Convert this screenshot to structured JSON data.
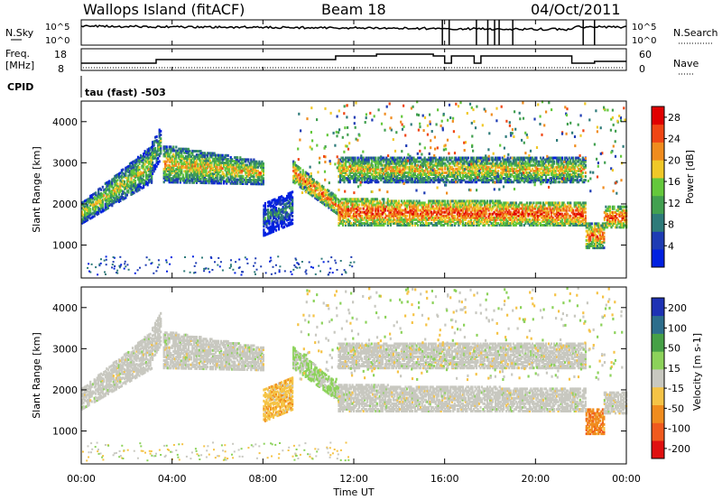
{
  "header": {
    "site": "Wallops Island (fitACF)",
    "beam": "Beam 18",
    "date": "04/Oct/2011"
  },
  "status_panels": {
    "nsky_label": "N.Sky",
    "nsky_ticks": [
      "10^5",
      "10^0"
    ],
    "nsearch_label": "N.Search",
    "nsearch_ticks": [
      "10^5",
      "10^0"
    ],
    "freq_label_1": "Freq.",
    "freq_label_2": "[MHz]",
    "freq_ticks": [
      "18",
      "8"
    ],
    "nave_label": "Nave",
    "nave_ticks": [
      "60",
      "0"
    ],
    "cpid_label": "CPID",
    "cpid_value": "tau (fast) -503"
  },
  "colors": {
    "power_scale": [
      "#0020e0",
      "#1e3cb4",
      "#2e7b7a",
      "#42a050",
      "#64c83c",
      "#f0c828",
      "#f08c1e",
      "#f04614",
      "#e00000"
    ],
    "velocity_scale": [
      "#e01010",
      "#f05a1e",
      "#f08c1e",
      "#f5c346",
      "#c8c8c0",
      "#8cd25a",
      "#46a046",
      "#2d6e8c",
      "#1e32b4"
    ],
    "ground_scatter": "#c8c8c0"
  },
  "chart_data": [
    {
      "type": "heatmap",
      "name": "power",
      "ylabel": "Slant Range [km]",
      "yticks": [
        "1000",
        "2000",
        "3000",
        "4000"
      ],
      "ylim": [
        200,
        4500
      ],
      "xlim": [
        0,
        24
      ],
      "colorbar_label": "Power [dB]",
      "colorbar_ticks": [
        "4",
        "8",
        "12",
        "16",
        "20",
        "24",
        "28"
      ],
      "colorbar_range": [
        0,
        30
      ],
      "scatter_regions": [
        {
          "t0": 0.0,
          "t1": 3.1,
          "r0_start": 1500,
          "r0_end": 2500,
          "r1_start": 2000,
          "r1_end": 3400,
          "power": 18
        },
        {
          "t0": 3.1,
          "t1": 3.5,
          "r0_start": 2700,
          "r0_end": 3100,
          "r1_start": 3500,
          "r1_end": 3900,
          "power": 14
        },
        {
          "t0": 3.6,
          "t1": 8.0,
          "r0_start": 2500,
          "r0_end": 2450,
          "r1_start": 3400,
          "r1_end": 3000,
          "power": 20
        },
        {
          "t0": 8.0,
          "t1": 9.3,
          "r0_start": 1200,
          "r0_end": 1500,
          "r1_start": 2000,
          "r1_end": 2300,
          "power": 10
        },
        {
          "t0": 9.3,
          "t1": 11.3,
          "r0_start": 2500,
          "r0_end": 1700,
          "r1_start": 3000,
          "r1_end": 2100,
          "power": 24
        },
        {
          "t0": 11.3,
          "t1": 22.2,
          "r0_start": 1450,
          "r0_end": 1450,
          "r1_start": 2100,
          "r1_end": 2000,
          "power": 26
        },
        {
          "t0": 11.3,
          "t1": 22.2,
          "r0_start": 2500,
          "r0_end": 2500,
          "r1_start": 3100,
          "r1_end": 3100,
          "power": 20
        },
        {
          "t0": 22.2,
          "t1": 23.0,
          "r0_start": 900,
          "r0_end": 900,
          "r1_start": 1500,
          "r1_end": 1500,
          "power": 24
        },
        {
          "t0": 23.0,
          "t1": 24.0,
          "r0_start": 1400,
          "r0_end": 1400,
          "r1_start": 1900,
          "r1_end": 1900,
          "power": 26
        }
      ]
    },
    {
      "type": "heatmap",
      "name": "velocity",
      "ylabel": "Slant Range [km]",
      "yticks": [
        "1000",
        "2000",
        "3000",
        "4000"
      ],
      "ylim": [
        200,
        4500
      ],
      "xlim": [
        0,
        24
      ],
      "xlabel": "Time UT",
      "xticks": [
        "00:00",
        "04:00",
        "08:00",
        "12:00",
        "16:00",
        "20:00",
        "00:00"
      ],
      "colorbar_label": "Velocity [m s-1]",
      "colorbar_ticks": [
        "-200",
        "-100",
        "-50",
        "-15",
        "15",
        "50",
        "100",
        "200"
      ],
      "colorbar_range": [
        -250,
        250
      ],
      "scatter_regions": [
        {
          "t0": 0.0,
          "t1": 3.1,
          "r0_start": 1500,
          "r0_end": 2500,
          "r1_start": 2000,
          "r1_end": 3400,
          "velocity": 0
        },
        {
          "t0": 3.1,
          "t1": 3.5,
          "r0_start": 2700,
          "r0_end": 3100,
          "r1_start": 3500,
          "r1_end": 3900,
          "velocity": 0
        },
        {
          "t0": 3.6,
          "t1": 8.0,
          "r0_start": 2500,
          "r0_end": 2450,
          "r1_start": 3400,
          "r1_end": 3000,
          "velocity": 0
        },
        {
          "t0": 8.0,
          "t1": 9.3,
          "r0_start": 1200,
          "r0_end": 1500,
          "r1_start": 2000,
          "r1_end": 2300,
          "velocity": -60
        },
        {
          "t0": 9.3,
          "t1": 11.3,
          "r0_start": 2500,
          "r0_end": 1700,
          "r1_start": 3000,
          "r1_end": 2100,
          "velocity": 40
        },
        {
          "t0": 11.3,
          "t1": 22.2,
          "r0_start": 1450,
          "r0_end": 1450,
          "r1_start": 2100,
          "r1_end": 2000,
          "velocity": 0
        },
        {
          "t0": 11.3,
          "t1": 22.2,
          "r0_start": 2500,
          "r0_end": 2500,
          "r1_start": 3100,
          "r1_end": 3100,
          "velocity": 0
        },
        {
          "t0": 22.2,
          "t1": 23.0,
          "r0_start": 900,
          "r0_end": 900,
          "r1_start": 1500,
          "r1_end": 1500,
          "velocity": -120
        },
        {
          "t0": 23.0,
          "t1": 24.0,
          "r0_start": 1400,
          "r0_end": 1400,
          "r1_start": 1900,
          "r1_end": 1900,
          "velocity": 0
        }
      ]
    }
  ]
}
